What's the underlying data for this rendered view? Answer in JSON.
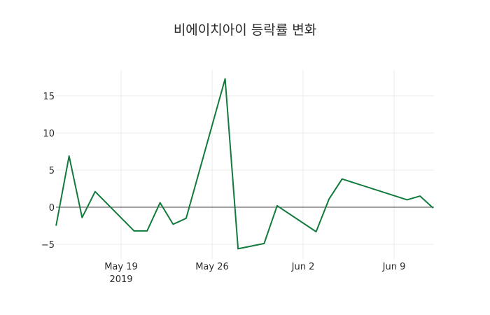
{
  "chart_data": {
    "type": "line",
    "title": "비에이치아이 등락률 변화",
    "xlabel": "",
    "ylabel": "",
    "x": [
      "2019-05-14",
      "2019-05-15",
      "2019-05-16",
      "2019-05-17",
      "2019-05-20",
      "2019-05-21",
      "2019-05-22",
      "2019-05-23",
      "2019-05-24",
      "2019-05-27",
      "2019-05-28",
      "2019-05-30",
      "2019-05-31",
      "2019-06-03",
      "2019-06-04",
      "2019-06-05",
      "2019-06-10",
      "2019-06-11",
      "2019-06-12"
    ],
    "series": [
      {
        "name": "등락률",
        "color": "#127a3c",
        "values": [
          -2.5,
          6.9,
          -1.4,
          2.1,
          -3.2,
          -3.2,
          0.6,
          -2.3,
          -1.5,
          17.3,
          -5.6,
          -4.9,
          0.2,
          -3.3,
          1.1,
          3.8,
          1.0,
          1.5,
          -0.1
        ]
      }
    ],
    "ylim": [
      -6.5,
      18.5
    ],
    "yticks": [
      -5,
      0,
      5,
      10,
      15
    ],
    "ytick_labels": [
      "−5",
      "0",
      "5",
      "10",
      "15"
    ],
    "xticks": [
      "2019-05-19",
      "2019-05-26",
      "2019-06-02",
      "2019-06-09"
    ],
    "xtick_labels": [
      "May 19",
      "May 26",
      "Jun 2",
      "Jun 9"
    ],
    "xtick_sublabel": "2019",
    "grid": true,
    "zeroline": true,
    "legend": false
  }
}
